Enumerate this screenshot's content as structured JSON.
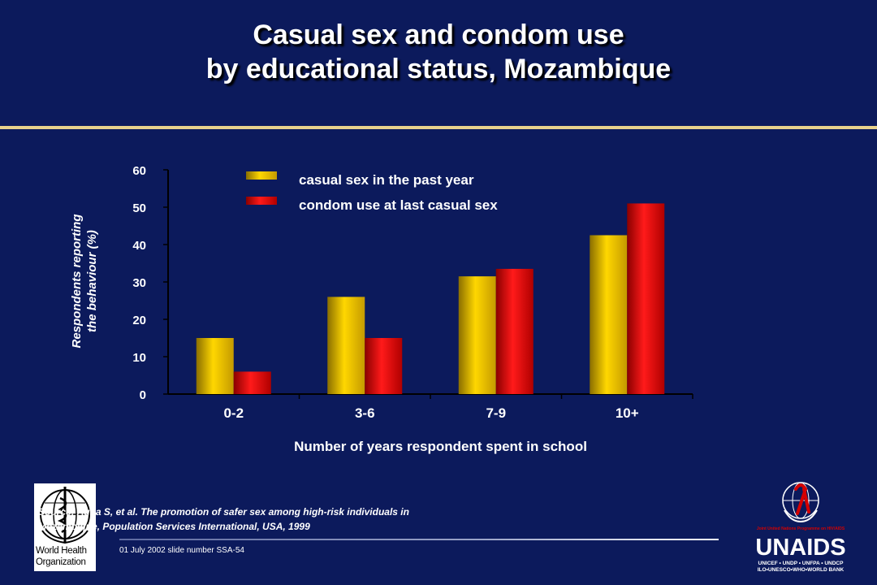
{
  "slide": {
    "title_line1": "Casual sex and condom use",
    "title_line2": "by educational status, Mozambique",
    "source_line1": "Source: Agha S, et al. The promotion of safer sex among high-risk individuals in",
    "source_line2": "Mozambique, Population Services International,  USA, 1999",
    "slide_number": "01 July 2002 slide number SSA-54",
    "colors": {
      "background": "#0c1a5c",
      "accent_rule": "#e8d28c",
      "series_casual": "#f0c400",
      "series_condom": "#e00000"
    }
  },
  "logos": {
    "who_line1": "World Health",
    "who_line2": "Organization",
    "unaids_tagline": "Joint United Nations Programme on HIV/AIDS",
    "unaids_name": "UNAIDS",
    "unaids_sub1": "UNICEF • UNDP • UNFPA • UNDCP",
    "unaids_sub2": "ILO•UNESCO•WHO•WORLD BANK"
  },
  "chart_data": {
    "type": "bar",
    "title": "",
    "xlabel": "Number of years respondent spent in school",
    "ylabel_line1": "Respondents reporting",
    "ylabel_line2": "the behaviour (%)",
    "categories": [
      "0-2",
      "3-6",
      "7-9",
      "10+"
    ],
    "ylim": [
      0,
      60
    ],
    "yticks": [
      0,
      10,
      20,
      30,
      40,
      50,
      60
    ],
    "grid": false,
    "legend_position": "top",
    "series": [
      {
        "name": "casual sex in the past year",
        "values": [
          15,
          26,
          31.5,
          42.5
        ],
        "color": "#f0c400"
      },
      {
        "name": "condom use at last casual sex",
        "values": [
          6,
          15,
          33.5,
          51
        ],
        "color": "#e00000"
      }
    ]
  }
}
